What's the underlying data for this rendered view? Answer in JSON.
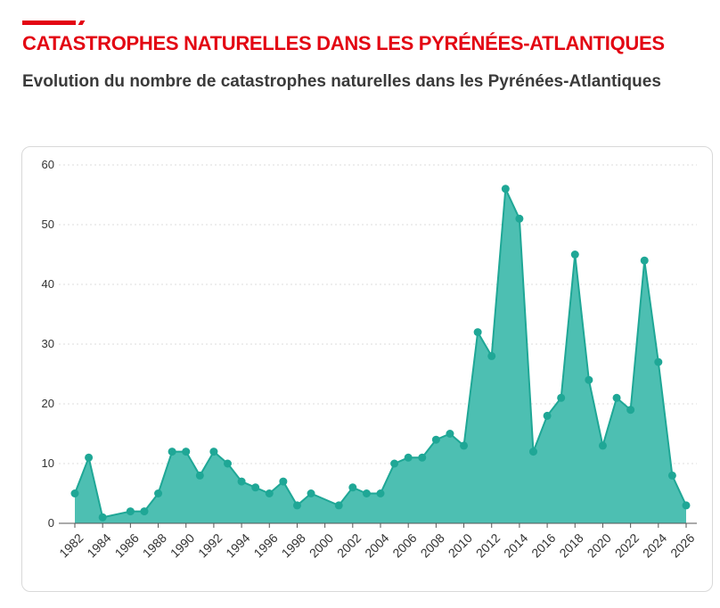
{
  "header": {
    "title": "CATASTROPHES NATURELLES DANS LES PYRÉNÉES-ATLANTIQUES",
    "subtitle": "Evolution du nombre de catastrophes naturelles dans les Pyrénées-Atlantiques"
  },
  "colors": {
    "accent": "#e30613",
    "area_fill": "#4dbfb2",
    "line": "#1fa796",
    "grid": "#dddddd"
  },
  "chart_data": {
    "type": "area",
    "title": "",
    "xlabel": "",
    "ylabel": "",
    "x": [
      1982,
      1983,
      1984,
      1986,
      1987,
      1988,
      1989,
      1990,
      1991,
      1992,
      1993,
      1994,
      1995,
      1996,
      1997,
      1998,
      1999,
      2001,
      2002,
      2003,
      2004,
      2005,
      2006,
      2007,
      2008,
      2009,
      2010,
      2011,
      2012,
      2013,
      2014,
      2015,
      2016,
      2017,
      2018,
      2019,
      2020,
      2021,
      2022,
      2023,
      2024,
      2025,
      2026
    ],
    "values": [
      5,
      11,
      1,
      2,
      2,
      5,
      12,
      12,
      8,
      12,
      10,
      7,
      6,
      5,
      7,
      3,
      5,
      3,
      6,
      5,
      5,
      10,
      11,
      11,
      14,
      15,
      13,
      32,
      28,
      56,
      51,
      12,
      18,
      21,
      45,
      24,
      13,
      21,
      19,
      44,
      27,
      8,
      3
    ],
    "xlim": [
      1982,
      2026
    ],
    "ylim": [
      0,
      60
    ],
    "x_ticks": [
      "1982",
      "1984",
      "1986",
      "1988",
      "1990",
      "1992",
      "1994",
      "1996",
      "1998",
      "2000",
      "2002",
      "2004",
      "2006",
      "2008",
      "2010",
      "2012",
      "2014",
      "2016",
      "2018",
      "2020",
      "2022",
      "2024",
      "2026"
    ],
    "y_ticks": [
      "0",
      "10",
      "20",
      "30",
      "40",
      "50",
      "60"
    ],
    "grid": "horizontal dotted"
  }
}
